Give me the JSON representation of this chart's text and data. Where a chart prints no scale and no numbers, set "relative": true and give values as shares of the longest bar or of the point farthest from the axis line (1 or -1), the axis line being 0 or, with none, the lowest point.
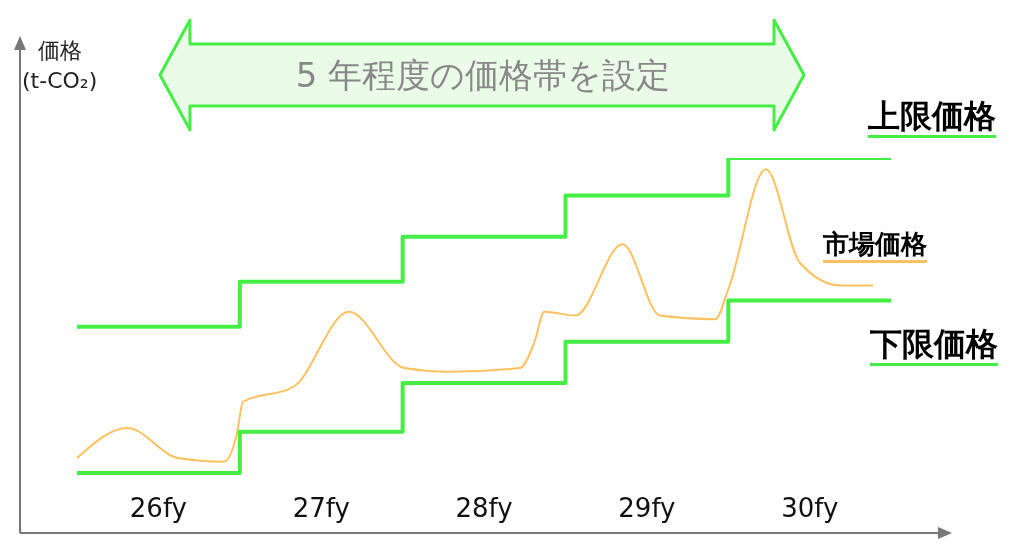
{
  "chart_data": {
    "type": "line",
    "title": "5 年程度の価格帯を設定",
    "ylabel": "価格\n(t-CO₂)",
    "relative": true,
    "legend": false,
    "grid": false,
    "marker": "none",
    "line_style": "solid",
    "xlim": [
      25.15,
      30.8
    ],
    "xticks": [
      {
        "value": 26,
        "label": "26fy"
      },
      {
        "value": 27,
        "label": "27fy"
      },
      {
        "value": 28,
        "label": "28fy"
      },
      {
        "value": 29,
        "label": "29fy"
      },
      {
        "value": 30,
        "label": "30fy"
      }
    ],
    "series": [
      {
        "name": "上限価格",
        "type": "step",
        "color": "#44ee44",
        "x": [
          25.5,
          26.5,
          27.5,
          28.5,
          29.5,
          30.5
        ],
        "values": [
          0.55,
          0.67,
          0.79,
          0.9,
          1.0,
          1.0
        ]
      },
      {
        "name": "市場価格",
        "color": "#ffc060",
        "x": [
          25.5,
          25.81,
          26.12,
          26.4,
          26.48,
          26.52,
          26.83,
          27.17,
          27.51,
          27.78,
          28.22,
          28.31,
          28.37,
          28.56,
          28.85,
          29.08,
          29.42,
          29.5,
          29.73,
          29.94,
          30.19,
          30.39
        ],
        "values": [
          0.2,
          0.28,
          0.2,
          0.19,
          0.26,
          0.35,
          0.39,
          0.59,
          0.44,
          0.43,
          0.44,
          0.51,
          0.59,
          0.58,
          0.77,
          0.58,
          0.57,
          0.65,
          0.97,
          0.72,
          0.66,
          0.66
        ]
      },
      {
        "name": "下限価格",
        "type": "step",
        "color": "#44ee44",
        "x": [
          25.5,
          26.5,
          27.5,
          28.5,
          29.5,
          30.5
        ],
        "values": [
          0.16,
          0.27,
          0.4,
          0.51,
          0.62,
          0.62
        ]
      }
    ]
  }
}
